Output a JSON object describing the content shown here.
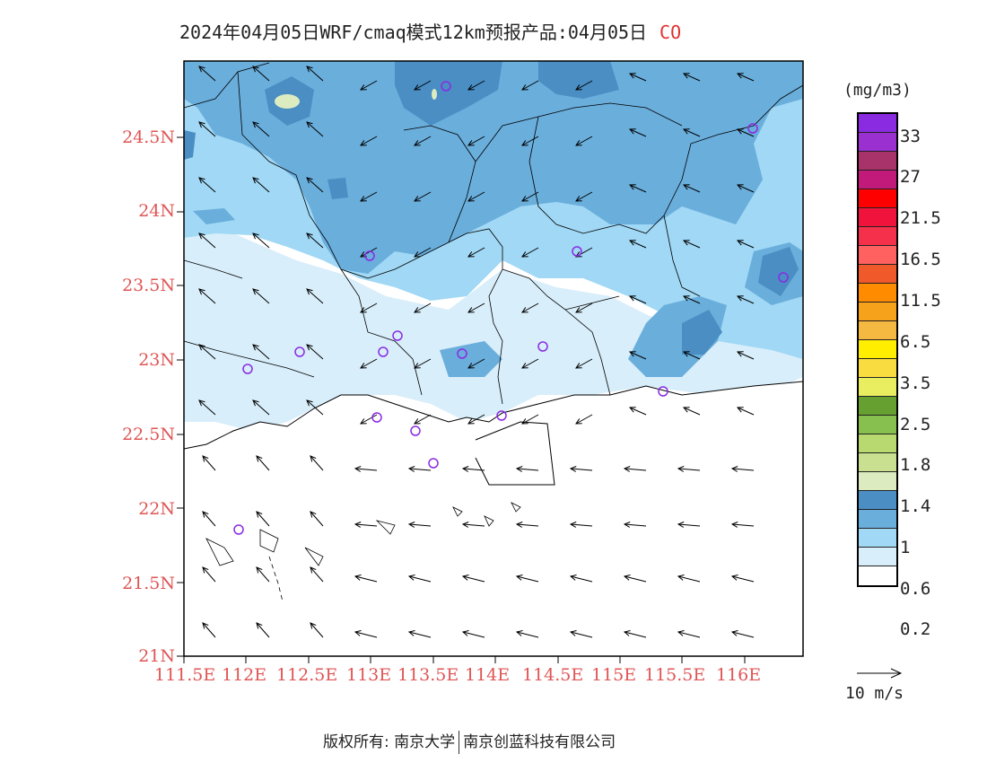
{
  "title": {
    "text": "2024年04月05日WRF/cmaq模式12km预报产品:04月05日",
    "species": "CO"
  },
  "axes": {
    "x_labels": [
      "111.5E",
      "112E",
      "112.5E",
      "113E",
      "113.5E",
      "114E",
      "114.5E",
      "115E",
      "115.5E",
      "116E"
    ],
    "y_labels": [
      "24.5N",
      "24N",
      "23.5N",
      "23N",
      "22.5N",
      "22N",
      "21.5N",
      "21N"
    ]
  },
  "legend": {
    "unit": "(mg/m3)",
    "colors": [
      "#8a2be2",
      "#9b30d0",
      "#a8336a",
      "#c21a7a",
      "#ff0000",
      "#f0143c",
      "#f5304a",
      "#ff6060",
      "#f05a2a",
      "#ff8c00",
      "#f6a21a",
      "#f5b840",
      "#ffee00",
      "#f8dc40",
      "#e8ee60",
      "#66a030",
      "#88c050",
      "#b8d870",
      "#c8e090",
      "#dcecc0",
      "#4a8ec4",
      "#6aaedc",
      "#a0d8f5",
      "#d8eefa",
      "#ffffff"
    ],
    "labels": [
      "33",
      "27",
      "21.5",
      "16.5",
      "11.5",
      "6.5",
      "3.5",
      "2.5",
      "1.8",
      "1.4",
      "1",
      "0.6",
      "0.2"
    ]
  },
  "reference_vector": {
    "label": "10 m/s"
  },
  "copyright": {
    "owner_label": "版权所有:",
    "org1": "南京大学",
    "org2": "南京创蓝科技有限公司"
  },
  "colors": {
    "land_fill": "#a0d8f5",
    "mid_fill": "#6aaedc",
    "deep_fill": "#4a8ec4",
    "pale_fill": "#d8eefa",
    "label_red": "#e05555",
    "station_marker": "#8a2be2"
  }
}
